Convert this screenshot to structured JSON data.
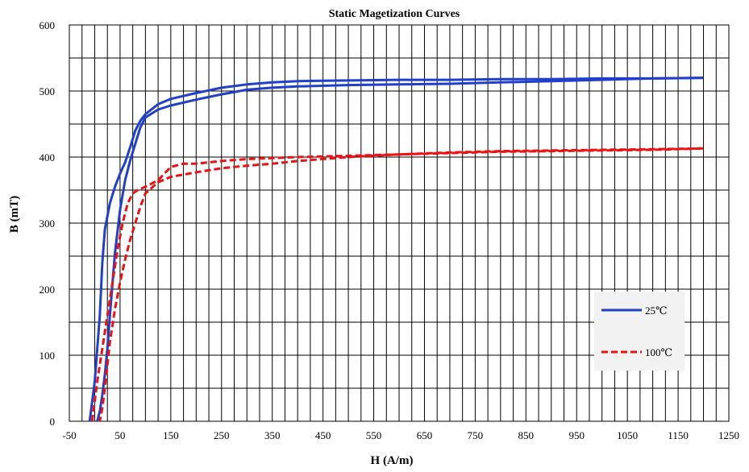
{
  "chart_data": {
    "type": "line",
    "title": "Static Magetization Curves",
    "xlabel": "H (A/m)",
    "ylabel": "B (mT)",
    "xlim": [
      -50,
      1250
    ],
    "ylim": [
      0,
      600
    ],
    "x_ticks": [
      -50,
      50,
      150,
      250,
      350,
      450,
      550,
      650,
      750,
      850,
      950,
      1050,
      1150,
      1250
    ],
    "x_tick_labels": [
      "-50",
      "50",
      "150",
      "250",
      "350",
      "450",
      "550",
      "650",
      "750",
      "850",
      "950",
      "1050",
      "1150",
      "1250"
    ],
    "y_ticks": [
      0,
      100,
      200,
      300,
      400,
      500,
      600
    ],
    "y_tick_labels": [
      "0",
      "100",
      "200",
      "300",
      "400",
      "500",
      "600"
    ],
    "grid": true,
    "legend_position": "lower-right",
    "series": [
      {
        "name": "25℃",
        "color": "#1f3fcc",
        "dash": "solid",
        "branches": [
          {
            "x": [
              -10,
              0,
              10,
              15,
              20,
              30,
              40,
              50,
              60,
              70,
              80,
              90,
              100,
              125,
              150,
              200,
              250,
              300,
              350,
              400,
              500,
              600,
              700,
              800,
              900,
              1000,
              1100,
              1200
            ],
            "y": [
              0,
              60,
              160,
              240,
              290,
              330,
              355,
              375,
              392,
              415,
              440,
              455,
              465,
              480,
              488,
              497,
              505,
              510,
              513,
              515,
              516,
              517,
              517,
              518,
              518,
              519,
              519,
              520
            ]
          },
          {
            "x": [
              1200,
              1100,
              1000,
              900,
              800,
              700,
              600,
              500,
              400,
              350,
              300,
              250,
              200,
              150,
              125,
              100,
              90,
              80,
              70,
              60,
              50,
              40,
              30,
              25,
              20,
              15,
              10,
              5
            ],
            "y": [
              520,
              519,
              517,
              515,
              513,
              511,
              510,
              509,
              507,
              505,
              502,
              495,
              487,
              478,
              472,
              460,
              445,
              420,
              395,
              365,
              320,
              255,
              160,
              110,
              70,
              40,
              15,
              0
            ]
          }
        ]
      },
      {
        "name": "100℃",
        "color": "#ee1111",
        "dash": "dashed",
        "branches": [
          {
            "x": [
              -5,
              5,
              15,
              25,
              35,
              45,
              55,
              65,
              75,
              85,
              100,
              125,
              150,
              175,
              200,
              250,
              300,
              400,
              500,
              600,
              700,
              800,
              900,
              1000,
              1100,
              1200
            ],
            "y": [
              0,
              60,
              110,
              160,
              210,
              260,
              300,
              330,
              345,
              350,
              355,
              365,
              385,
              390,
              390,
              394,
              397,
              400,
              402,
              404,
              406,
              408,
              409,
              410,
              411,
              413
            ]
          },
          {
            "x": [
              1200,
              1100,
              1000,
              900,
              800,
              700,
              600,
              500,
              400,
              350,
              300,
              250,
              200,
              150,
              125,
              100,
              90,
              80,
              70,
              60,
              50,
              40,
              30,
              20,
              15,
              10
            ],
            "y": [
              413,
              412,
              411,
              410,
              409,
              407,
              404,
              400,
              394,
              390,
              387,
              383,
              377,
              370,
              362,
              345,
              325,
              300,
              275,
              245,
              210,
              170,
              120,
              50,
              20,
              0
            ]
          }
        ]
      }
    ]
  }
}
